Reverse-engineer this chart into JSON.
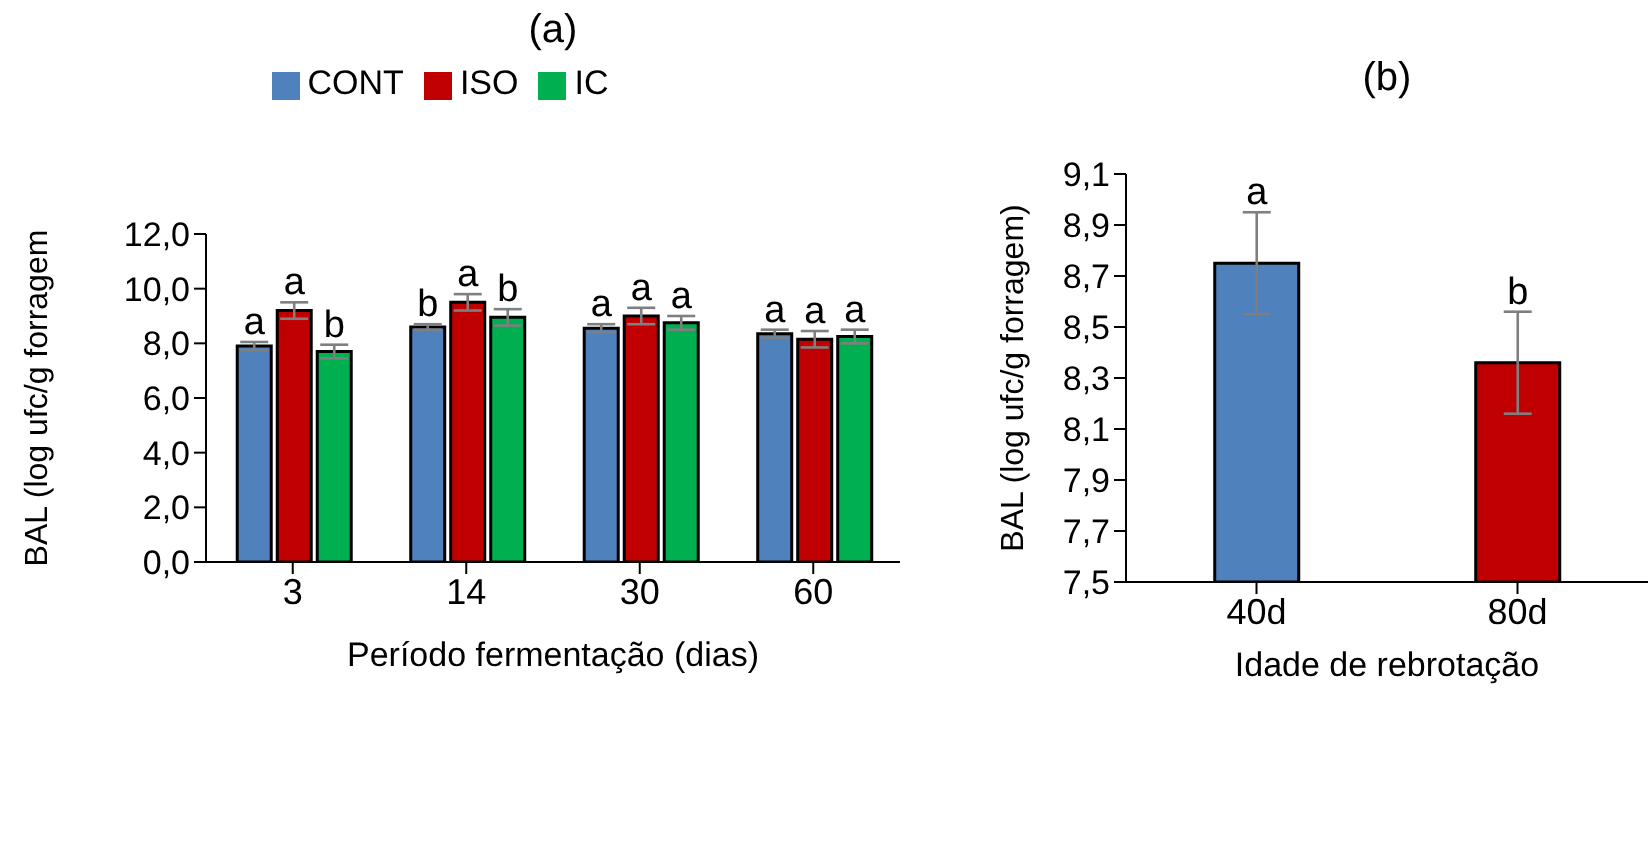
{
  "chart_data": [
    {
      "type": "bar",
      "title": "(a)",
      "xlabel": "Período fermentação (dias)",
      "ylabel": "BAL (log ufc/g forragem",
      "categories": [
        "3",
        "14",
        "30",
        "60"
      ],
      "series": [
        {
          "name": "CONT",
          "color": "#4f81bd",
          "values": [
            7.9,
            8.6,
            8.55,
            8.35
          ],
          "errors": [
            0.15,
            0.1,
            0.15,
            0.15
          ],
          "value_labels": [
            "a",
            "b",
            "a",
            "a"
          ]
        },
        {
          "name": "ISO",
          "color": "#c00000",
          "values": [
            9.2,
            9.5,
            9.0,
            8.15
          ],
          "errors": [
            0.3,
            0.3,
            0.3,
            0.3
          ],
          "value_labels": [
            "a",
            "a",
            "a",
            "a"
          ]
        },
        {
          "name": "IC",
          "color": "#00b050",
          "values": [
            7.7,
            8.95,
            8.75,
            8.25
          ],
          "errors": [
            0.25,
            0.3,
            0.25,
            0.25
          ],
          "value_labels": [
            "b",
            "b",
            "a",
            "a"
          ]
        }
      ],
      "ylim": [
        0,
        12
      ],
      "yticks": [
        {
          "value": 0,
          "label": "0,0"
        },
        {
          "value": 2,
          "label": "2,0"
        },
        {
          "value": 4,
          "label": "4,0"
        },
        {
          "value": 6,
          "label": "6,0"
        },
        {
          "value": 8,
          "label": "8,0"
        },
        {
          "value": 10,
          "label": "10,0"
        },
        {
          "value": 12,
          "label": "12,0"
        }
      ],
      "grid": false,
      "legend": "top"
    },
    {
      "type": "bar",
      "title": "(b)",
      "xlabel": "Idade de rebrotação",
      "ylabel": "BAL (log ufc/g forragem)",
      "categories": [
        "40d",
        "80d"
      ],
      "values": [
        8.75,
        8.36
      ],
      "colors": [
        "#4f81bd",
        "#c00000"
      ],
      "errors": [
        0.2,
        0.2
      ],
      "value_labels": [
        "a",
        "b"
      ],
      "ylim": [
        7.5,
        9.1
      ],
      "yticks": [
        {
          "value": 7.5,
          "label": "7,5"
        },
        {
          "value": 7.7,
          "label": "7,7"
        },
        {
          "value": 7.9,
          "label": "7,9"
        },
        {
          "value": 8.1,
          "label": "8,1"
        },
        {
          "value": 8.3,
          "label": "8,3"
        },
        {
          "value": 8.5,
          "label": "8,5"
        },
        {
          "value": 8.7,
          "label": "8,7"
        },
        {
          "value": 8.9,
          "label": "8,9"
        },
        {
          "value": 9.1,
          "label": "9,1"
        }
      ],
      "grid": false,
      "legend": false
    }
  ]
}
